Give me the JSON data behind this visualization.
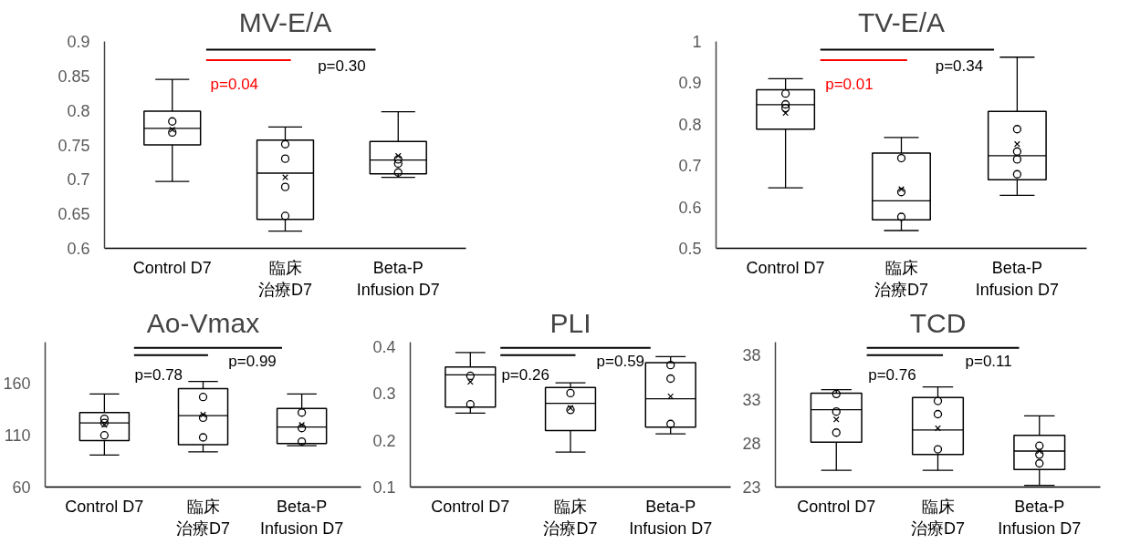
{
  "chart_data": [
    {
      "type": "box",
      "title": "MV-E/A",
      "categories": [
        "Control D7",
        "臨床治療D7",
        "Beta-P Infusion D7"
      ],
      "ylim": [
        0.6,
        0.9
      ],
      "yticks": [
        0.6,
        0.65,
        0.7,
        0.75,
        0.8,
        0.85,
        0.9
      ],
      "boxes": [
        {
          "low": 0.697,
          "q1": 0.75,
          "median": 0.774,
          "q3": 0.799,
          "high": 0.845,
          "mean": 0.772
        },
        {
          "low": 0.625,
          "q1": 0.642,
          "median": 0.709,
          "q3": 0.757,
          "high": 0.776,
          "mean": 0.703
        },
        {
          "low": 0.703,
          "q1": 0.708,
          "median": 0.728,
          "q3": 0.755,
          "high": 0.798,
          "mean": 0.734
        }
      ],
      "series": [
        {
          "type": "scatter",
          "marker": "circle",
          "x": [
            "Control D7",
            "Control D7",
            "臨床治療D7",
            "臨床治療D7",
            "臨床治療D7",
            "臨床治療D7",
            "Beta-P Infusion D7",
            "Beta-P Infusion D7",
            "Beta-P Infusion D7"
          ],
          "values": [
            0.784,
            0.768,
            0.751,
            0.73,
            0.689,
            0.647,
            0.729,
            0.723,
            0.71
          ]
        }
      ],
      "annotations": [
        "p=0.04",
        "p=0.30"
      ]
    },
    {
      "type": "box",
      "title": "TV-E/A",
      "categories": [
        "Control D7",
        "臨床治療D7",
        "Beta-P Infusion D7"
      ],
      "ylim": [
        0.5,
        1.0
      ],
      "yticks": [
        0.5,
        0.6,
        0.7,
        0.8,
        0.9,
        1
      ],
      "boxes": [
        {
          "low": 0.646,
          "q1": 0.788,
          "median": 0.847,
          "q3": 0.883,
          "high": 0.91,
          "mean": 0.827
        },
        {
          "low": 0.543,
          "q1": 0.569,
          "median": 0.615,
          "q3": 0.73,
          "high": 0.768,
          "mean": 0.643
        },
        {
          "low": 0.628,
          "q1": 0.666,
          "median": 0.724,
          "q3": 0.831,
          "high": 0.962,
          "mean": 0.752
        }
      ],
      "series": [
        {
          "type": "scatter",
          "marker": "circle",
          "x": [
            "Control D7",
            "Control D7",
            "Control D7",
            "臨床治療D7",
            "臨床治療D7",
            "臨床治療D7",
            "Beta-P Infusion D7",
            "Beta-P Infusion D7",
            "Beta-P Infusion D7",
            "Beta-P Infusion D7"
          ],
          "values": [
            0.874,
            0.848,
            0.839,
            0.718,
            0.636,
            0.576,
            0.788,
            0.734,
            0.715,
            0.679
          ]
        }
      ],
      "annotations": [
        "p=0.01",
        "p=0.34"
      ]
    },
    {
      "type": "box",
      "title": "Ao-Vmax",
      "categories": [
        "Control D7",
        "臨床治療D7",
        "Beta-P Infusion D7"
      ],
      "ylim": [
        60,
        200
      ],
      "yticks": [
        60,
        110,
        160
      ],
      "boxes": [
        {
          "low": 91,
          "q1": 105,
          "median": 122,
          "q3": 132,
          "high": 150,
          "mean": 120
        },
        {
          "low": 94,
          "q1": 101,
          "median": 129,
          "q3": 155,
          "high": 162,
          "mean": 130
        },
        {
          "low": 100,
          "q1": 102,
          "median": 118,
          "q3": 136,
          "high": 150,
          "mean": 120
        }
      ],
      "series": [
        {
          "type": "scatter",
          "marker": "circle",
          "x": [
            "Control D7",
            "Control D7",
            "Control D7",
            "臨床治療D7",
            "臨床治療D7",
            "臨床治療D7",
            "Beta-P Infusion D7",
            "Beta-P Infusion D7",
            "Beta-P Infusion D7"
          ],
          "values": [
            126,
            122,
            110,
            147,
            127,
            108,
            132,
            117,
            104
          ]
        }
      ],
      "annotations": [
        "p=0.78",
        "p=0.99"
      ]
    },
    {
      "type": "box",
      "title": "PLI",
      "categories": [
        "Control D7",
        "臨床治療D7",
        "Beta-P Infusion D7"
      ],
      "ylim": [
        0.1,
        0.41
      ],
      "yticks": [
        0.1,
        0.2,
        0.3,
        0.4
      ],
      "boxes": [
        {
          "low": 0.258,
          "q1": 0.271,
          "median": 0.34,
          "q3": 0.357,
          "high": 0.388,
          "mean": 0.325
        },
        {
          "low": 0.175,
          "q1": 0.221,
          "median": 0.279,
          "q3": 0.313,
          "high": 0.323,
          "mean": 0.269
        },
        {
          "low": 0.214,
          "q1": 0.228,
          "median": 0.289,
          "q3": 0.366,
          "high": 0.379,
          "mean": 0.294
        }
      ],
      "series": [
        {
          "type": "scatter",
          "marker": "circle",
          "x": [
            "Control D7",
            "Control D7",
            "臨床治療D7",
            "臨床治療D7",
            "Beta-P Infusion D7",
            "Beta-P Infusion D7",
            "Beta-P Infusion D7"
          ],
          "values": [
            0.338,
            0.277,
            0.301,
            0.265,
            0.361,
            0.332,
            0.235
          ]
        }
      ],
      "annotations": [
        "p=0.26",
        "p=0.59"
      ]
    },
    {
      "type": "box",
      "title": "TCD",
      "categories": [
        "Control D7",
        "臨床治療D7",
        "Beta-P Infusion D7"
      ],
      "ylim": [
        23,
        39.5
      ],
      "yticks": [
        23,
        28,
        33,
        38
      ],
      "boxes": [
        {
          "low": 24.9,
          "q1": 28.1,
          "median": 31.8,
          "q3": 33.7,
          "high": 34.1,
          "mean": 30.7
        },
        {
          "low": 24.9,
          "q1": 26.7,
          "median": 29.5,
          "q3": 33.2,
          "high": 34.4,
          "mean": 29.7
        },
        {
          "low": 23.2,
          "q1": 25.0,
          "median": 27.1,
          "q3": 28.9,
          "high": 31.1,
          "mean": 27.1
        }
      ],
      "series": [
        {
          "type": "scatter",
          "marker": "circle",
          "x": [
            "Control D7",
            "Control D7",
            "Control D7",
            "臨床治療D7",
            "臨床治療D7",
            "臨床治療D7",
            "Beta-P Infusion D7",
            "Beta-P Infusion D7",
            "Beta-P Infusion D7"
          ],
          "values": [
            33.6,
            31.6,
            29.2,
            32.8,
            31.3,
            27.3,
            27.7,
            26.7,
            25.7
          ]
        }
      ],
      "annotations": [
        "p=0.76",
        "p=0.11"
      ]
    }
  ]
}
